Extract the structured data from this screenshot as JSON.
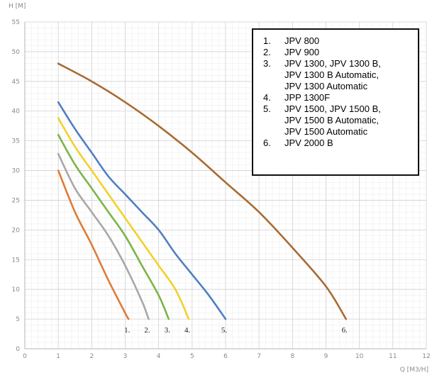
{
  "chart_data": {
    "type": "line",
    "xlabel": "Q [M3/H]",
    "ylabel": "H [M]",
    "xlim": [
      0,
      12
    ],
    "ylim": [
      0,
      55
    ],
    "xticks": [
      0,
      1,
      2,
      3,
      4,
      5,
      6,
      7,
      8,
      9,
      10,
      11,
      12
    ],
    "yticks": [
      0,
      5,
      10,
      15,
      20,
      25,
      30,
      35,
      40,
      45,
      50,
      55
    ],
    "grid": true,
    "legend_position": "top-right",
    "legend": [
      {
        "number": "1.",
        "text": "JPV 800"
      },
      {
        "number": "2.",
        "text": "JPV 900"
      },
      {
        "number": "3.",
        "text": "JPV 1300, JPV 1300 B,\nJPV 1300 B Automatic,\nJPV 1300 Automatic"
      },
      {
        "number": "4.",
        "text": "JPP 1300F"
      },
      {
        "number": "5.",
        "text": "JPV 1500, JPV 1500 B,\nJPV 1500 B Automatic,\nJPV 1500 Automatic"
      },
      {
        "number": "6.",
        "text": "JPV 2000 B"
      }
    ],
    "series": [
      {
        "label": "1.",
        "color": "#e07b3a",
        "points": [
          [
            1,
            30
          ],
          [
            1.5,
            23
          ],
          [
            2,
            17.5
          ],
          [
            2.5,
            11.5
          ],
          [
            3,
            6
          ],
          [
            3.1,
            5
          ]
        ]
      },
      {
        "label": "2.",
        "color": "#a8a8a8",
        "points": [
          [
            1,
            32.8
          ],
          [
            1.5,
            27
          ],
          [
            2,
            23
          ],
          [
            2.5,
            19
          ],
          [
            3,
            14
          ],
          [
            3.5,
            8
          ],
          [
            3.7,
            5
          ]
        ]
      },
      {
        "label": "3.",
        "color": "#7ab547",
        "points": [
          [
            1,
            36
          ],
          [
            1.5,
            31
          ],
          [
            2,
            27
          ],
          [
            2.5,
            23
          ],
          [
            3,
            19
          ],
          [
            3.5,
            14
          ],
          [
            4,
            9
          ],
          [
            4.3,
            5
          ]
        ]
      },
      {
        "label": "4.",
        "color": "#f2d12a",
        "points": [
          [
            1,
            38.8
          ],
          [
            1.5,
            34
          ],
          [
            2,
            30
          ],
          [
            2.5,
            26
          ],
          [
            3,
            22
          ],
          [
            3.5,
            18
          ],
          [
            4,
            14
          ],
          [
            4.5,
            10
          ],
          [
            4.9,
            5
          ]
        ]
      },
      {
        "label": "5.",
        "color": "#4f7fc2",
        "points": [
          [
            1,
            41.5
          ],
          [
            1.5,
            37
          ],
          [
            2,
            33
          ],
          [
            2.5,
            29
          ],
          [
            3,
            26
          ],
          [
            3.5,
            23
          ],
          [
            4,
            20
          ],
          [
            4.5,
            16
          ],
          [
            5,
            12.5
          ],
          [
            5.5,
            9
          ],
          [
            6,
            5
          ]
        ]
      },
      {
        "label": "6.",
        "color": "#a86b33",
        "points": [
          [
            1,
            48
          ],
          [
            2,
            45
          ],
          [
            3,
            41.5
          ],
          [
            4,
            37.5
          ],
          [
            5,
            33
          ],
          [
            6,
            28
          ],
          [
            7,
            23
          ],
          [
            8,
            17
          ],
          [
            9,
            10.5
          ],
          [
            9.6,
            5
          ]
        ]
      }
    ]
  }
}
